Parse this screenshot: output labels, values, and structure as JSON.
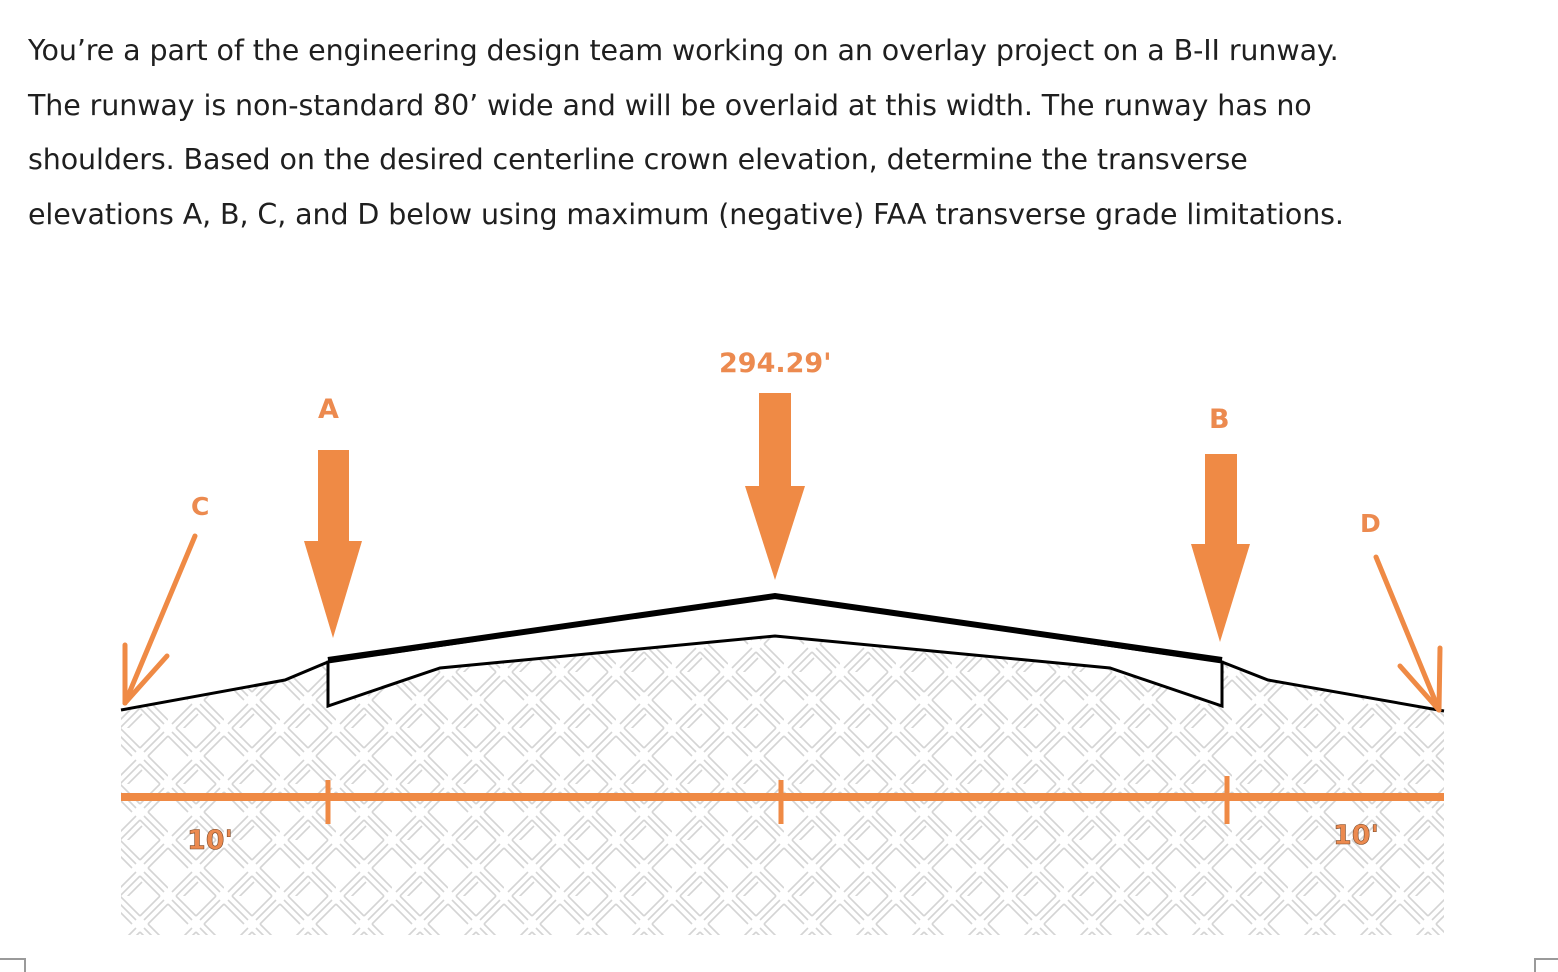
{
  "problem": {
    "lines": [
      "You’re a part of the engineering design team working on an overlay project on a B-II runway.",
      "The runway is non-standard 80’ wide and will be overlaid at this width. The runway has no",
      "shoulders. Based on the desired centerline crown elevation, determine the transverse",
      "elevations A, B, C, and D below using maximum (negative) FAA transverse grade limitations."
    ]
  },
  "diagram": {
    "crown_elevation": "294.29'",
    "labels": {
      "a": "A",
      "b": "B",
      "c": "C",
      "d": "D"
    },
    "dimensions": {
      "left": "10'",
      "right": "10'"
    },
    "colors": {
      "accent": "#ef8a45",
      "line": "#000000",
      "hatch": "#d4d4d4"
    }
  }
}
